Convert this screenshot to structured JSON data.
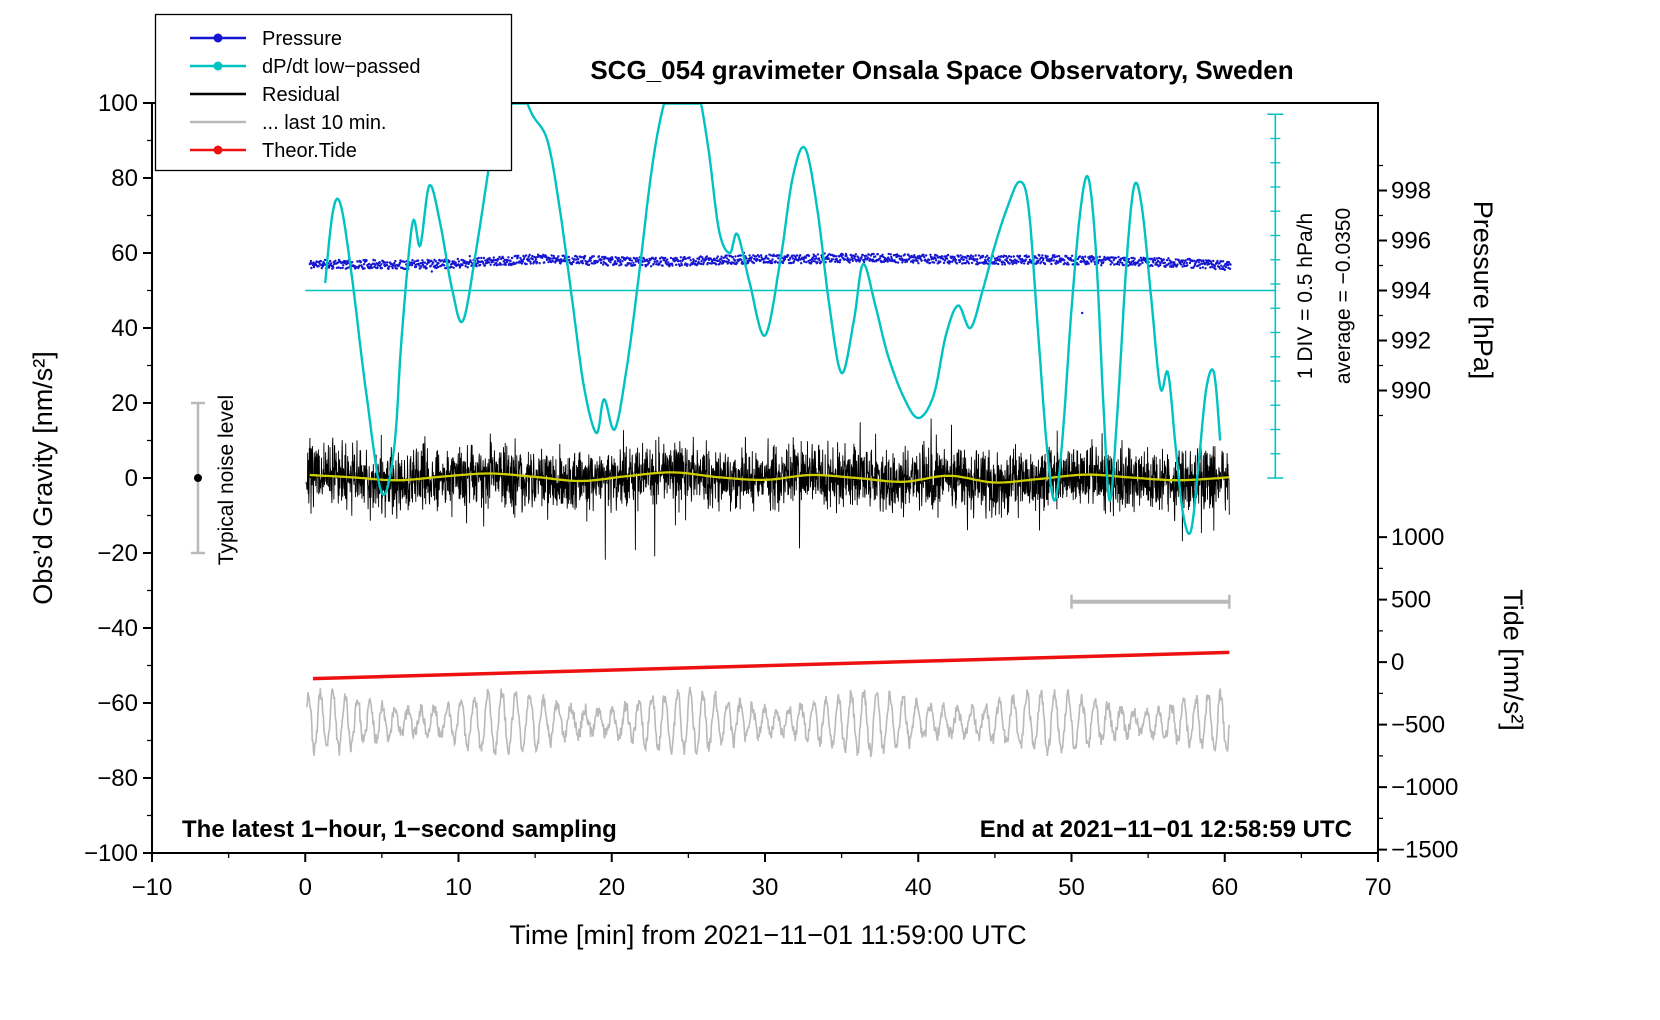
{
  "title": "SCG_054 gravimeter Onsala Space Observatory, Sweden",
  "annotations": {
    "div_scale": "1 DIV = 0.5 hPa/h",
    "average": "average = −0.0350",
    "noise_level": "Typical noise level",
    "sampling_note": "The latest 1−hour, 1−second sampling",
    "end_time": "End at 2021−11−01 12:58:59 UTC"
  },
  "axes": {
    "x": {
      "label": "Time [min] from 2021−11−01 11:59:00 UTC",
      "min": -10,
      "max": 70,
      "major_ticks": [
        -10,
        0,
        10,
        20,
        30,
        40,
        50,
        60,
        70
      ],
      "minor_step": 5
    },
    "y_left": {
      "label": "Obs’d Gravity [nm/s²]",
      "min": -100,
      "max": 100,
      "major_ticks": [
        -100,
        -80,
        -60,
        -40,
        -20,
        0,
        20,
        40,
        60,
        80,
        100
      ],
      "minor_step": 10
    },
    "y_right_pressure": {
      "label": "Pressure [hPa]",
      "major_ticks": [
        998,
        996,
        994,
        992,
        990
      ],
      "minor_step_hpa": 1,
      "gravity_at_994": 50,
      "gravity_per_hpa": 6.6667
    },
    "y_right_tide": {
      "label": "Tide [nm/s²]",
      "major_ticks": [
        1000,
        500,
        0,
        -500,
        -1000,
        -1500
      ],
      "minor_step": 250,
      "gravity_at_0": -49.1,
      "gravity_per_unit": 0.033333
    }
  },
  "legend": {
    "items": [
      {
        "label": "Pressure",
        "color": "#1616d1",
        "marker": "line-dot"
      },
      {
        "label": "dP/dt low−passed",
        "color": "#00c2c2",
        "marker": "line-dot"
      },
      {
        "label": "Residual",
        "color": "#000000",
        "marker": "line"
      },
      {
        "label": "... last 10 min.",
        "color": "#b9b9b9",
        "marker": "line"
      },
      {
        "label": "Theor.Tide",
        "color": "#ee1111",
        "marker": "line-dot"
      }
    ]
  },
  "chart_data": {
    "type": "line",
    "title": "SCG_054 gravimeter Onsala Space Observatory, Sweden",
    "xlabel": "Time [min] from 2021−11−01 11:59:00 UTC",
    "xlim": [
      -10,
      70
    ],
    "ylim_left_gravity": [
      -100,
      100
    ],
    "pressure_axis_ticks_hpa": [
      998,
      996,
      994,
      992,
      990
    ],
    "tide_axis_ticks": [
      1000,
      500,
      0,
      -500,
      -1000,
      -1500
    ],
    "series": [
      {
        "name": "Pressure",
        "color": "#1616d1",
        "style": "dense-dots",
        "base_points": [
          [
            0.3,
            57.0
          ],
          [
            3,
            57.0
          ],
          [
            6,
            56.9
          ],
          [
            9,
            57.1
          ],
          [
            12,
            57.6
          ],
          [
            15,
            58.4
          ],
          [
            18,
            58.1
          ],
          [
            21,
            57.7
          ],
          [
            24,
            57.6
          ],
          [
            27,
            58.1
          ],
          [
            30,
            58.4
          ],
          [
            33,
            58.4
          ],
          [
            36,
            58.7
          ],
          [
            39,
            58.5
          ],
          [
            42,
            58.3
          ],
          [
            45,
            58.1
          ],
          [
            48,
            58.3
          ],
          [
            51,
            58.0
          ],
          [
            54,
            57.7
          ],
          [
            57,
            57.4
          ],
          [
            60.4,
            56.6
          ]
        ],
        "noise_amplitude": 1.2,
        "outliers": [
          [
            50.7,
            44
          ]
        ]
      },
      {
        "name": "dP/dt low−passed",
        "color": "#00c2c2",
        "style": "smooth-line",
        "control_points": [
          [
            1.3,
            52
          ],
          [
            1.8,
            71
          ],
          [
            2.3,
            73
          ],
          [
            3.0,
            55
          ],
          [
            4.0,
            22
          ],
          [
            5.0,
            -4
          ],
          [
            5.8,
            8
          ],
          [
            6.3,
            38
          ],
          [
            7.0,
            68
          ],
          [
            7.5,
            62
          ],
          [
            8.1,
            78
          ],
          [
            8.8,
            68
          ],
          [
            9.6,
            50
          ],
          [
            10.3,
            42
          ],
          [
            11.2,
            62
          ],
          [
            12.2,
            88
          ],
          [
            13.0,
            101
          ],
          [
            13.8,
            106
          ],
          [
            14.8,
            97
          ],
          [
            15.8,
            90
          ],
          [
            16.6,
            72
          ],
          [
            17.4,
            48
          ],
          [
            18.2,
            24
          ],
          [
            19.0,
            12
          ],
          [
            19.5,
            21
          ],
          [
            20.2,
            13
          ],
          [
            21.0,
            30
          ],
          [
            21.8,
            55
          ],
          [
            22.6,
            82
          ],
          [
            23.3,
            98
          ],
          [
            24.0,
            106
          ],
          [
            24.8,
            110
          ],
          [
            25.6,
            104
          ],
          [
            26.3,
            88
          ],
          [
            27.0,
            66
          ],
          [
            27.7,
            60
          ],
          [
            28.2,
            65
          ],
          [
            29.0,
            52
          ],
          [
            30.0,
            38
          ],
          [
            31.0,
            58
          ],
          [
            31.8,
            80
          ],
          [
            32.6,
            88
          ],
          [
            33.4,
            72
          ],
          [
            34.2,
            46
          ],
          [
            35.0,
            28
          ],
          [
            35.8,
            42
          ],
          [
            36.4,
            57
          ],
          [
            37.2,
            46
          ],
          [
            38.0,
            33
          ],
          [
            39.0,
            22
          ],
          [
            40.0,
            16
          ],
          [
            41.0,
            22
          ],
          [
            41.8,
            38
          ],
          [
            42.6,
            46
          ],
          [
            43.4,
            40
          ],
          [
            44.2,
            50
          ],
          [
            45.0,
            62
          ],
          [
            45.8,
            72
          ],
          [
            46.6,
            79
          ],
          [
            47.2,
            72
          ],
          [
            47.8,
            40
          ],
          [
            48.4,
            8
          ],
          [
            48.9,
            -6
          ],
          [
            49.4,
            10
          ],
          [
            50.0,
            45
          ],
          [
            50.6,
            72
          ],
          [
            51.1,
            80
          ],
          [
            51.6,
            60
          ],
          [
            52.1,
            18
          ],
          [
            52.5,
            -6
          ],
          [
            53.0,
            18
          ],
          [
            53.6,
            58
          ],
          [
            54.1,
            78
          ],
          [
            54.6,
            72
          ],
          [
            55.2,
            48
          ],
          [
            55.8,
            24
          ],
          [
            56.3,
            28
          ],
          [
            56.8,
            8
          ],
          [
            57.3,
            -10
          ],
          [
            57.8,
            -14
          ],
          [
            58.3,
            4
          ],
          [
            58.8,
            24
          ],
          [
            59.3,
            28
          ],
          [
            59.7,
            10
          ]
        ]
      },
      {
        "name": "Residual",
        "color": "#000000",
        "style": "noisy-line",
        "mean": 0,
        "noise_std": 4.2,
        "x_range": [
          0.05,
          60.3
        ]
      },
      {
        "name": "Residual smoothed",
        "color": "#cfcf00",
        "style": "smooth-line",
        "points": [
          [
            0.3,
            0.8
          ],
          [
            3,
            0.2
          ],
          [
            6,
            -0.6
          ],
          [
            9,
            0.4
          ],
          [
            12,
            1.2
          ],
          [
            15,
            0.3
          ],
          [
            18,
            -0.8
          ],
          [
            21,
            0.5
          ],
          [
            24,
            1.5
          ],
          [
            27,
            0.2
          ],
          [
            30,
            -0.5
          ],
          [
            33,
            0.8
          ],
          [
            36,
            0.0
          ],
          [
            39,
            -1.0
          ],
          [
            42,
            0.6
          ],
          [
            45,
            -1.2
          ],
          [
            48,
            -0.2
          ],
          [
            51,
            0.9
          ],
          [
            54,
            0.1
          ],
          [
            57,
            -0.6
          ],
          [
            60.3,
            0.2
          ]
        ]
      },
      {
        "name": "... last 10 min.",
        "color": "#b9b9b9",
        "style": "oscillating-line",
        "baseline": -65,
        "amplitude": 8,
        "x_range": [
          0.1,
          60.3
        ]
      },
      {
        "name": "Theor.Tide",
        "color": "#ee1111",
        "style": "line",
        "points": [
          [
            0.5,
            -53.5
          ],
          [
            60.3,
            -46.5
          ]
        ]
      }
    ],
    "reference_line": {
      "y": 50,
      "x_range": [
        0,
        63.3
      ],
      "color": "#00c2c2"
    },
    "vertical_scale_bar": {
      "x": 63.3,
      "y_range": [
        0,
        97
      ],
      "divisions": 15,
      "color": "#00c2c2"
    },
    "noise_level_bar": {
      "x": -7,
      "y_range": [
        -20,
        20
      ],
      "dot_y": 0,
      "bar_color": "#b9b9b9",
      "dot_color": "#000000"
    },
    "horizontal_scale_bar": {
      "y": -33,
      "x_range": [
        50,
        60.3
      ],
      "color": "#b9b9b9"
    }
  }
}
